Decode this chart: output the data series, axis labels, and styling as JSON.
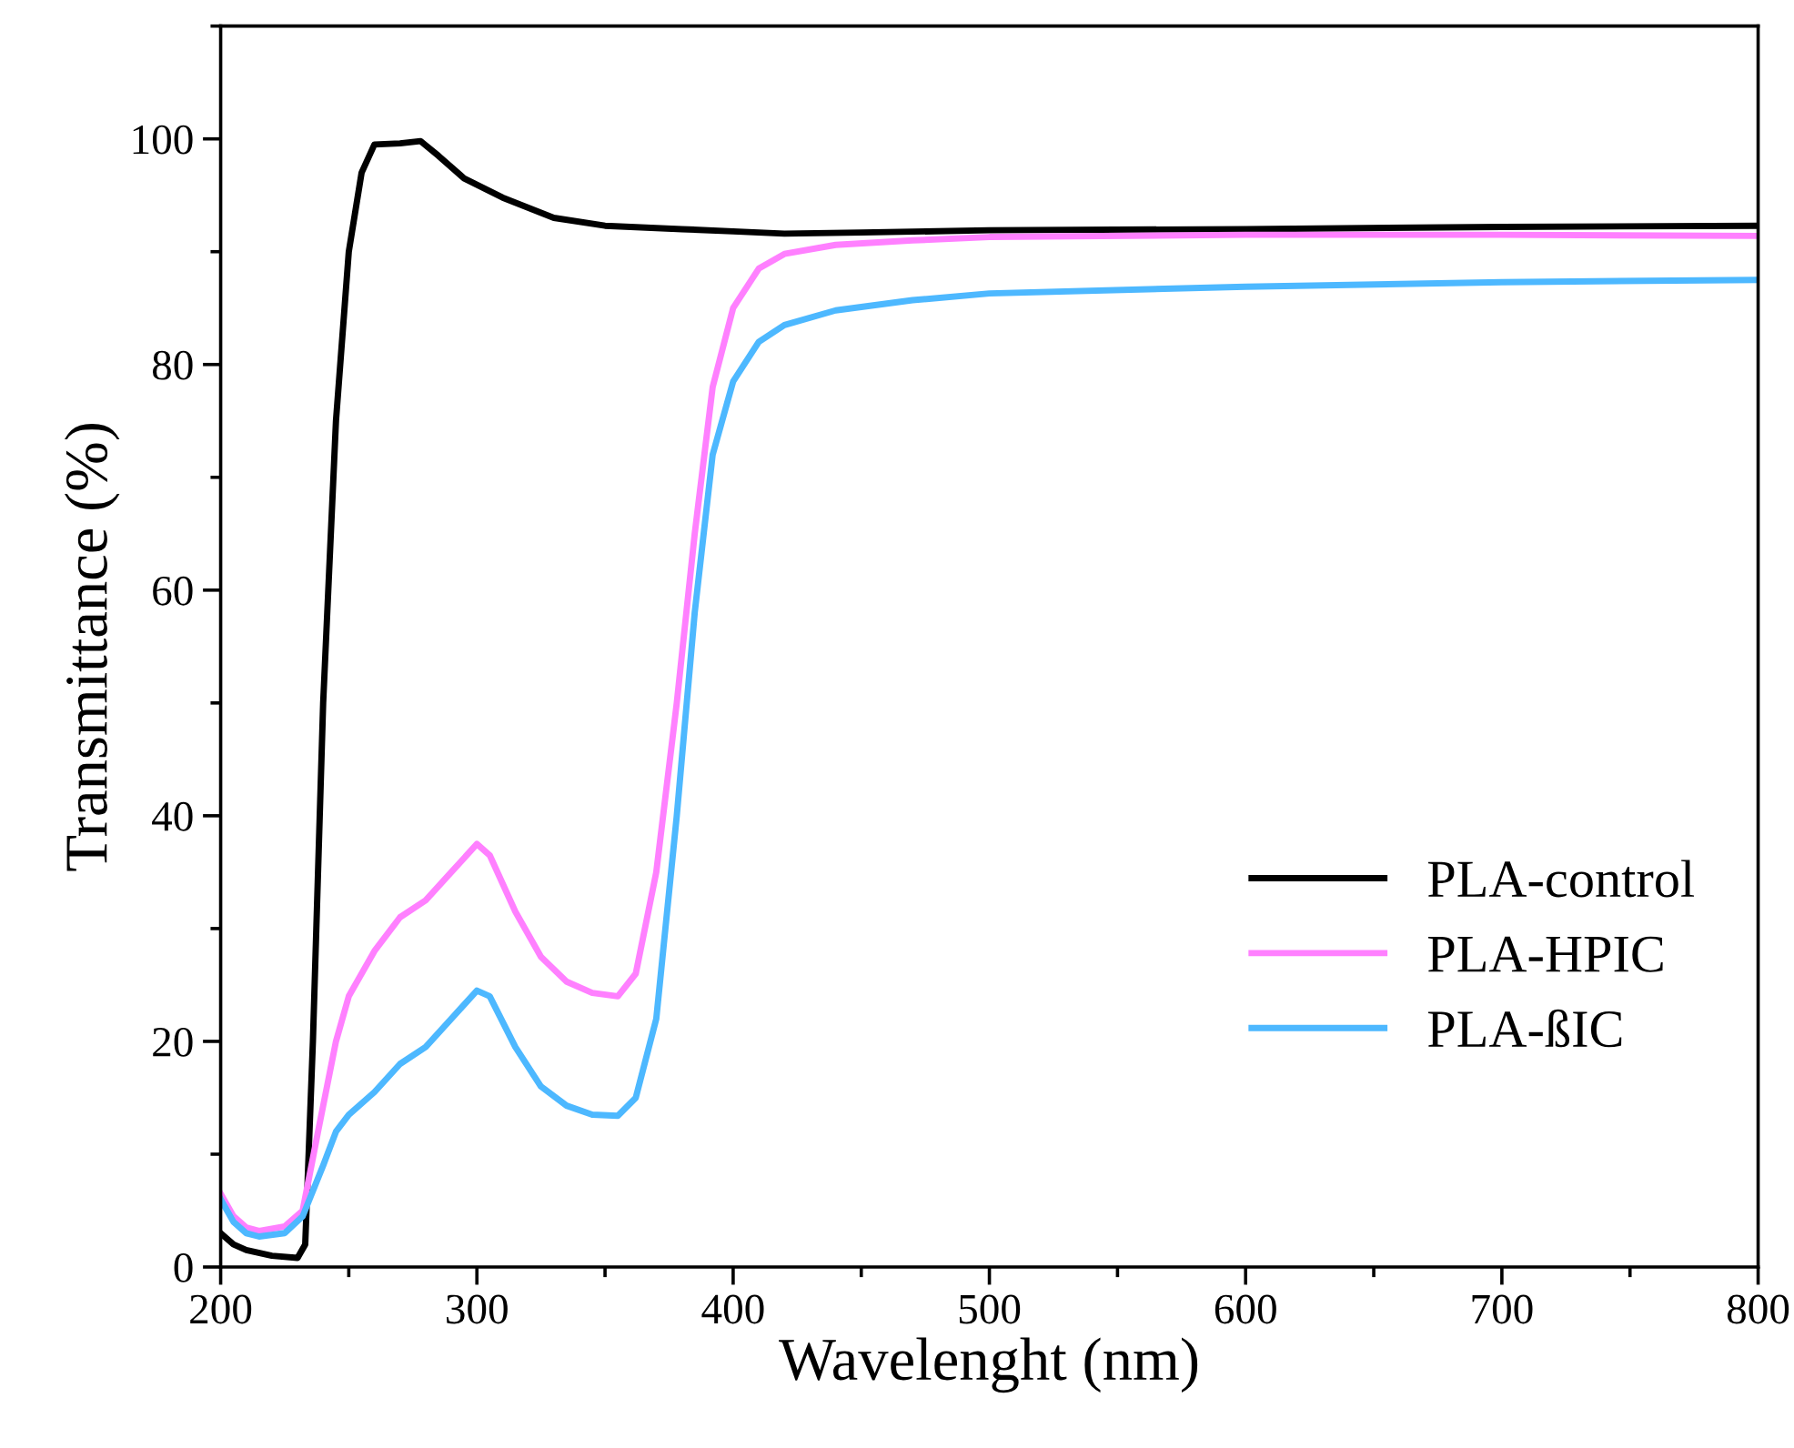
{
  "chart_data": {
    "type": "line",
    "xlabel": "Wavelenght (nm)",
    "ylabel": "Transmittance (%)",
    "xlim": [
      200,
      800
    ],
    "ylim": [
      0,
      110
    ],
    "xticks": [
      200,
      300,
      400,
      500,
      600,
      700,
      800
    ],
    "yticks": [
      0,
      20,
      40,
      60,
      80,
      100
    ],
    "grid": false,
    "legend": "bottom right",
    "marker": "none",
    "line_style": "solid",
    "series": [
      {
        "name": "PLA-control",
        "color": "#000000",
        "x": [
          200,
          205,
          210,
          220,
          230,
          233,
          236,
          240,
          245,
          250,
          255,
          260,
          270,
          278,
          285,
          295,
          310,
          330,
          350,
          380,
          400,
          420,
          450,
          500,
          600,
          700,
          800
        ],
        "values": [
          3,
          2,
          1.5,
          1,
          0.8,
          2,
          20,
          50,
          75,
          90,
          97,
          99.5,
          99.6,
          99.8,
          98.5,
          96.5,
          94.8,
          93,
          92.3,
          92,
          91.8,
          91.6,
          91.7,
          91.9,
          92,
          92.2,
          92.3
        ]
      },
      {
        "name": "PLA-HPIC",
        "color": "#ff80ff",
        "x": [
          200,
          205,
          210,
          215,
          225,
          232,
          238,
          245,
          250,
          260,
          270,
          280,
          290,
          300,
          305,
          315,
          325,
          335,
          345,
          355,
          362,
          370,
          378,
          385,
          392,
          400,
          410,
          420,
          440,
          470,
          500,
          600,
          700,
          800
        ],
        "values": [
          6.5,
          4.5,
          3.5,
          3.2,
          3.6,
          5,
          12,
          20,
          24,
          28,
          31,
          32.5,
          35,
          37.5,
          36.5,
          31.5,
          27.5,
          25.3,
          24.3,
          24,
          26,
          35,
          50,
          65,
          78,
          85,
          88.5,
          89.8,
          90.6,
          91,
          91.3,
          91.5,
          91.5,
          91.4
        ]
      },
      {
        "name": "PLA-ßIC",
        "color": "#4db8ff",
        "x": [
          200,
          205,
          210,
          215,
          225,
          232,
          240,
          245,
          250,
          260,
          270,
          280,
          290,
          300,
          305,
          315,
          325,
          335,
          345,
          355,
          362,
          370,
          378,
          385,
          392,
          400,
          410,
          420,
          440,
          470,
          500,
          600,
          700,
          800
        ],
        "values": [
          6,
          4,
          3,
          2.7,
          3,
          4.5,
          9,
          12,
          13.5,
          15.5,
          18,
          19.5,
          22,
          24.5,
          24,
          19.5,
          16,
          14.3,
          13.5,
          13.4,
          15,
          22,
          40,
          58,
          72,
          78.5,
          82,
          83.5,
          84.8,
          85.7,
          86.3,
          86.9,
          87.3,
          87.5
        ]
      }
    ]
  }
}
